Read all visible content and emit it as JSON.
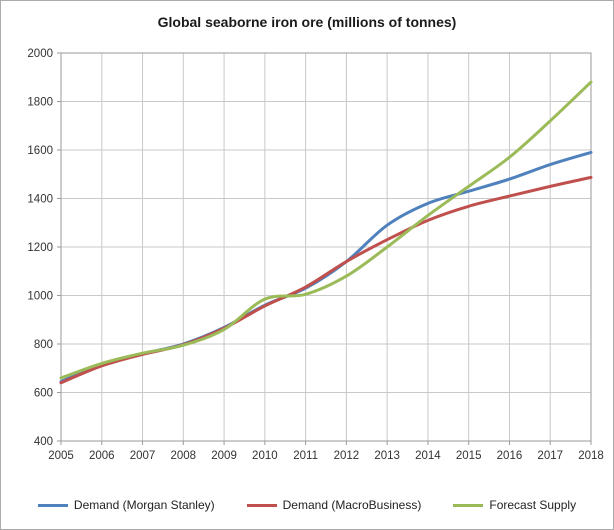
{
  "chart_data": {
    "type": "line",
    "title": "Global seaborne iron ore (millions of tonnes)",
    "categories": [
      "2005",
      "2006",
      "2007",
      "2008",
      "2009",
      "2010",
      "2011",
      "2012",
      "2013",
      "2014",
      "2015",
      "2016",
      "2017",
      "2018"
    ],
    "series": [
      {
        "name": "Demand (Morgan Stanley)",
        "color": "#4F81BD",
        "values": [
          645,
          715,
          760,
          800,
          868,
          960,
          1030,
          1140,
          1290,
          1380,
          1430,
          1480,
          1540,
          1590
        ]
      },
      {
        "name": "Demand (MacroBusiness)",
        "color": "#C0504D",
        "values": [
          640,
          710,
          757,
          797,
          865,
          957,
          1035,
          1140,
          1230,
          1310,
          1368,
          1410,
          1450,
          1487
        ]
      },
      {
        "name": "Forecast Supply",
        "color": "#9BBB59",
        "values": [
          660,
          720,
          762,
          795,
          860,
          985,
          1005,
          1080,
          1200,
          1330,
          1450,
          1570,
          1720,
          1880
        ]
      }
    ],
    "xlabel": "",
    "ylabel": "",
    "ylim": [
      400,
      2000
    ],
    "ytick_step": 200,
    "grid": true,
    "legend_position": "bottom",
    "colors": {
      "grid": "#c9c9c9",
      "plot_border": "#9a9a9a",
      "tick": "#9a9a9a"
    }
  }
}
